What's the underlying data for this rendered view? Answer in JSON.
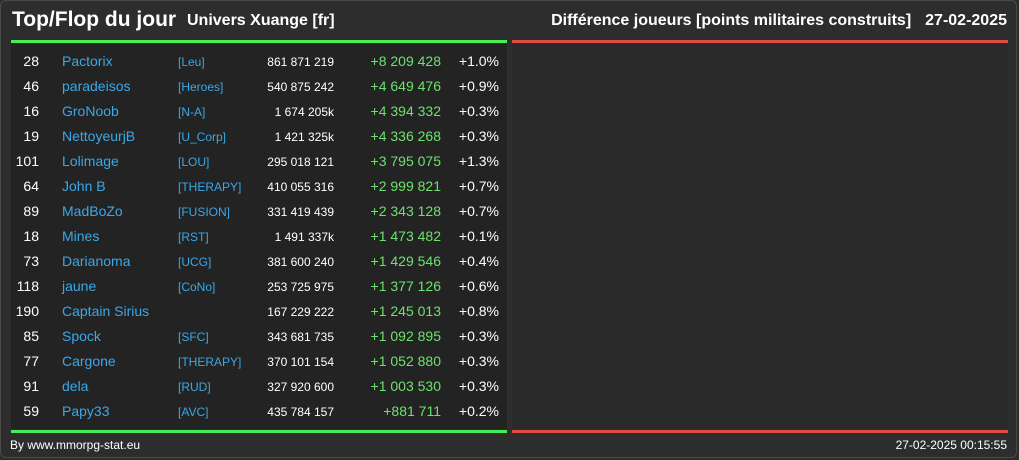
{
  "header": {
    "title": "Top/Flop du jour",
    "universe": "Univers Xuange [fr]",
    "metric": "Différence joueurs [points militaires construits]",
    "date": "27-02-2025"
  },
  "colors": {
    "positive": "#6de26d",
    "link": "#3aa8e8",
    "top_bar": "#44ee55",
    "flop_bar": "#e04a40"
  },
  "rows": [
    {
      "rank": "28",
      "name": "Pactorix",
      "alliance": "[Leu]",
      "points": "861 871 219",
      "diff": "+8 209 428",
      "pct": "+1.0%"
    },
    {
      "rank": "46",
      "name": "paradeisos",
      "alliance": "[Heroes]",
      "points": "540 875 242",
      "diff": "+4 649 476",
      "pct": "+0.9%"
    },
    {
      "rank": "16",
      "name": "GroNoob",
      "alliance": "[N-A]",
      "points": "1 674 205k",
      "diff": "+4 394 332",
      "pct": "+0.3%"
    },
    {
      "rank": "19",
      "name": "NettoyeurjB",
      "alliance": "[U_Corp]",
      "points": "1 421 325k",
      "diff": "+4 336 268",
      "pct": "+0.3%"
    },
    {
      "rank": "101",
      "name": "Lolimage",
      "alliance": "[LOU]",
      "points": "295 018 121",
      "diff": "+3 795 075",
      "pct": "+1.3%"
    },
    {
      "rank": "64",
      "name": "John B",
      "alliance": "[THERAPY]",
      "points": "410 055 316",
      "diff": "+2 999 821",
      "pct": "+0.7%"
    },
    {
      "rank": "89",
      "name": "MadBoZo",
      "alliance": "[FUSION]",
      "points": "331 419 439",
      "diff": "+2 343 128",
      "pct": "+0.7%"
    },
    {
      "rank": "18",
      "name": "Mines",
      "alliance": "[RST]",
      "points": "1 491 337k",
      "diff": "+1 473 482",
      "pct": "+0.1%"
    },
    {
      "rank": "73",
      "name": "Darianoma",
      "alliance": "[UCG]",
      "points": "381 600 240",
      "diff": "+1 429 546",
      "pct": "+0.4%"
    },
    {
      "rank": "118",
      "name": "jaune",
      "alliance": "[CoNo]",
      "points": "253 725 975",
      "diff": "+1 377 126",
      "pct": "+0.6%"
    },
    {
      "rank": "190",
      "name": "Captain Sirius",
      "alliance": "",
      "points": "167 229 222",
      "diff": "+1 245 013",
      "pct": "+0.8%"
    },
    {
      "rank": "85",
      "name": "Spock",
      "alliance": "[SFC]",
      "points": "343 681 735",
      "diff": "+1 092 895",
      "pct": "+0.3%"
    },
    {
      "rank": "77",
      "name": "Cargone",
      "alliance": "[THERAPY]",
      "points": "370 101 154",
      "diff": "+1 052 880",
      "pct": "+0.3%"
    },
    {
      "rank": "91",
      "name": "dela",
      "alliance": "[RUD]",
      "points": "327 920 600",
      "diff": "+1 003 530",
      "pct": "+0.3%"
    },
    {
      "rank": "59",
      "name": "Papy33",
      "alliance": "[AVC]",
      "points": "435 784 157",
      "diff": "+881 711",
      "pct": "+0.2%"
    }
  ],
  "footer": {
    "source": "By www.mmorpg-stat.eu",
    "timestamp": "27-02-2025 00:15:55"
  }
}
